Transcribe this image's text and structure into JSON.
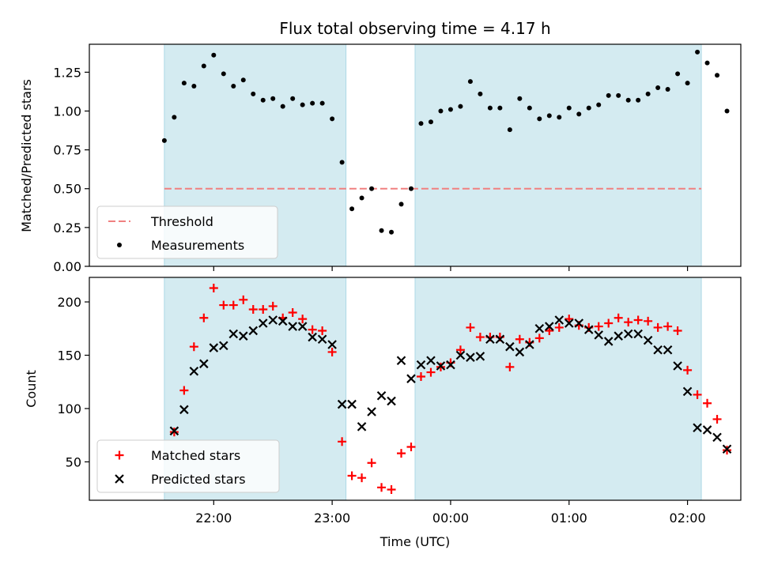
{
  "chart_data": [
    {
      "type": "scatter",
      "title": "Flux total observing time = 4.17 h",
      "xlabel": "",
      "ylabel": "Matched/Predicted stars",
      "ylim": [
        0,
        1.43
      ],
      "yticks": [
        "0.00",
        "0.25",
        "0.50",
        "0.75",
        "1.00",
        "1.25"
      ],
      "ytick_values": [
        0,
        0.25,
        0.5,
        0.75,
        1.0,
        1.25
      ],
      "xticks_shared": true,
      "shaded_intervals": [
        [
          "21:35",
          "23:07"
        ],
        [
          "23:42",
          "02:07"
        ]
      ],
      "threshold": {
        "name": "Threshold",
        "value": 0.5,
        "color": "#f08080",
        "style": "dashed"
      },
      "legend": {
        "placement": "lower-left",
        "entries": [
          "Threshold",
          "Measurements"
        ]
      },
      "series": [
        {
          "name": "Measurements",
          "color": "#000000",
          "marker": "dot",
          "points": [
            [
              "21:35",
              0.81
            ],
            [
              "21:40",
              0.96
            ],
            [
              "21:45",
              1.18
            ],
            [
              "21:50",
              1.16
            ],
            [
              "21:55",
              1.29
            ],
            [
              "22:00",
              1.36
            ],
            [
              "22:05",
              1.24
            ],
            [
              "22:10",
              1.16
            ],
            [
              "22:15",
              1.2
            ],
            [
              "22:20",
              1.11
            ],
            [
              "22:25",
              1.07
            ],
            [
              "22:30",
              1.08
            ],
            [
              "22:35",
              1.03
            ],
            [
              "22:40",
              1.08
            ],
            [
              "22:45",
              1.04
            ],
            [
              "22:50",
              1.05
            ],
            [
              "22:55",
              1.05
            ],
            [
              "23:00",
              0.95
            ],
            [
              "23:05",
              0.67
            ],
            [
              "23:10",
              0.37
            ],
            [
              "23:15",
              0.44
            ],
            [
              "23:20",
              0.5
            ],
            [
              "23:25",
              0.23
            ],
            [
              "23:30",
              0.22
            ],
            [
              "23:35",
              0.4
            ],
            [
              "23:40",
              0.5
            ],
            [
              "23:45",
              0.92
            ],
            [
              "23:50",
              0.93
            ],
            [
              "23:55",
              1.0
            ],
            [
              "00:00",
              1.01
            ],
            [
              "00:05",
              1.03
            ],
            [
              "00:10",
              1.19
            ],
            [
              "00:15",
              1.11
            ],
            [
              "00:20",
              1.02
            ],
            [
              "00:25",
              1.02
            ],
            [
              "00:30",
              0.88
            ],
            [
              "00:35",
              1.08
            ],
            [
              "00:40",
              1.02
            ],
            [
              "00:45",
              0.95
            ],
            [
              "00:50",
              0.97
            ],
            [
              "00:55",
              0.96
            ],
            [
              "01:00",
              1.02
            ],
            [
              "01:05",
              0.98
            ],
            [
              "01:10",
              1.02
            ],
            [
              "01:15",
              1.04
            ],
            [
              "01:20",
              1.1
            ],
            [
              "01:25",
              1.1
            ],
            [
              "01:30",
              1.07
            ],
            [
              "01:35",
              1.07
            ],
            [
              "01:40",
              1.11
            ],
            [
              "01:45",
              1.15
            ],
            [
              "01:50",
              1.14
            ],
            [
              "01:55",
              1.24
            ],
            [
              "02:00",
              1.18
            ],
            [
              "02:05",
              1.38
            ],
            [
              "02:10",
              1.31
            ],
            [
              "02:15",
              1.23
            ],
            [
              "02:20",
              1.0
            ]
          ]
        }
      ]
    },
    {
      "type": "scatter",
      "title": "",
      "xlabel": "Time (UTC)",
      "ylabel": "Count",
      "ylim": [
        14,
        223
      ],
      "yticks": [
        "50",
        "100",
        "150",
        "200"
      ],
      "ytick_values": [
        50,
        100,
        150,
        200
      ],
      "xticks": [
        "22:00",
        "23:00",
        "00:00",
        "01:00",
        "02:00"
      ],
      "shaded_intervals": [
        [
          "21:35",
          "23:07"
        ],
        [
          "23:42",
          "02:07"
        ]
      ],
      "legend": {
        "placement": "lower-left",
        "entries": [
          "Matched stars",
          "Predicted stars"
        ]
      },
      "series": [
        {
          "name": "Matched stars",
          "color": "#ff0000",
          "marker": "plus",
          "points": [
            [
              "21:40",
              78
            ],
            [
              "21:45",
              117
            ],
            [
              "21:50",
              158
            ],
            [
              "21:55",
              185
            ],
            [
              "22:00",
              213
            ],
            [
              "22:05",
              197
            ],
            [
              "22:10",
              197
            ],
            [
              "22:15",
              202
            ],
            [
              "22:20",
              193
            ],
            [
              "22:25",
              193
            ],
            [
              "22:30",
              196
            ],
            [
              "22:35",
              185
            ],
            [
              "22:40",
              190
            ],
            [
              "22:45",
              184
            ],
            [
              "22:50",
              174
            ],
            [
              "22:55",
              173
            ],
            [
              "23:00",
              153
            ],
            [
              "23:05",
              69
            ],
            [
              "23:10",
              37
            ],
            [
              "23:15",
              35
            ],
            [
              "23:20",
              49
            ],
            [
              "23:25",
              26
            ],
            [
              "23:30",
              24
            ],
            [
              "23:35",
              58
            ],
            [
              "23:40",
              64
            ],
            [
              "23:45",
              130
            ],
            [
              "23:50",
              134
            ],
            [
              "23:55",
              139
            ],
            [
              "00:00",
              143
            ],
            [
              "00:05",
              155
            ],
            [
              "00:10",
              176
            ],
            [
              "00:15",
              167
            ],
            [
              "00:20",
              167
            ],
            [
              "00:25",
              167
            ],
            [
              "00:30",
              139
            ],
            [
              "00:35",
              165
            ],
            [
              "00:40",
              162
            ],
            [
              "00:45",
              166
            ],
            [
              "00:50",
              173
            ],
            [
              "00:55",
              176
            ],
            [
              "01:00",
              184
            ],
            [
              "01:05",
              178
            ],
            [
              "01:10",
              176
            ],
            [
              "01:15",
              177
            ],
            [
              "01:20",
              180
            ],
            [
              "01:25",
              185
            ],
            [
              "01:30",
              181
            ],
            [
              "01:35",
              183
            ],
            [
              "01:40",
              182
            ],
            [
              "01:45",
              176
            ],
            [
              "01:50",
              177
            ],
            [
              "01:55",
              173
            ],
            [
              "02:00",
              136
            ],
            [
              "02:05",
              113
            ],
            [
              "02:10",
              105
            ],
            [
              "02:15",
              90
            ],
            [
              "02:20",
              61
            ]
          ]
        },
        {
          "name": "Predicted stars",
          "color": "#000000",
          "marker": "x",
          "points": [
            [
              "21:40",
              79
            ],
            [
              "21:45",
              99
            ],
            [
              "21:50",
              135
            ],
            [
              "21:55",
              142
            ],
            [
              "22:00",
              157
            ],
            [
              "22:05",
              159
            ],
            [
              "22:10",
              170
            ],
            [
              "22:15",
              168
            ],
            [
              "22:20",
              173
            ],
            [
              "22:25",
              180
            ],
            [
              "22:30",
              183
            ],
            [
              "22:35",
              182
            ],
            [
              "22:40",
              177
            ],
            [
              "22:45",
              177
            ],
            [
              "22:50",
              167
            ],
            [
              "22:55",
              165
            ],
            [
              "23:00",
              160
            ],
            [
              "23:05",
              104
            ],
            [
              "23:10",
              104
            ],
            [
              "23:15",
              83
            ],
            [
              "23:20",
              97
            ],
            [
              "23:25",
              112
            ],
            [
              "23:30",
              107
            ],
            [
              "23:35",
              145
            ],
            [
              "23:40",
              128
            ],
            [
              "23:45",
              141
            ],
            [
              "23:50",
              145
            ],
            [
              "23:55",
              140
            ],
            [
              "00:00",
              141
            ],
            [
              "00:05",
              150
            ],
            [
              "00:10",
              148
            ],
            [
              "00:15",
              149
            ],
            [
              "00:20",
              165
            ],
            [
              "00:25",
              165
            ],
            [
              "00:30",
              158
            ],
            [
              "00:35",
              153
            ],
            [
              "00:40",
              160
            ],
            [
              "00:45",
              175
            ],
            [
              "00:50",
              177
            ],
            [
              "00:55",
              183
            ],
            [
              "01:00",
              180
            ],
            [
              "01:05",
              180
            ],
            [
              "01:10",
              174
            ],
            [
              "01:15",
              169
            ],
            [
              "01:20",
              163
            ],
            [
              "01:25",
              168
            ],
            [
              "01:30",
              170
            ],
            [
              "01:35",
              170
            ],
            [
              "01:40",
              164
            ],
            [
              "01:45",
              155
            ],
            [
              "01:50",
              155
            ],
            [
              "01:55",
              140
            ],
            [
              "02:00",
              116
            ],
            [
              "02:05",
              82
            ],
            [
              "02:10",
              80
            ],
            [
              "02:15",
              73
            ],
            [
              "02:20",
              62
            ]
          ]
        }
      ]
    }
  ],
  "colors": {
    "shade": "#d4ebf1",
    "shade_edge": "#add8e6"
  }
}
